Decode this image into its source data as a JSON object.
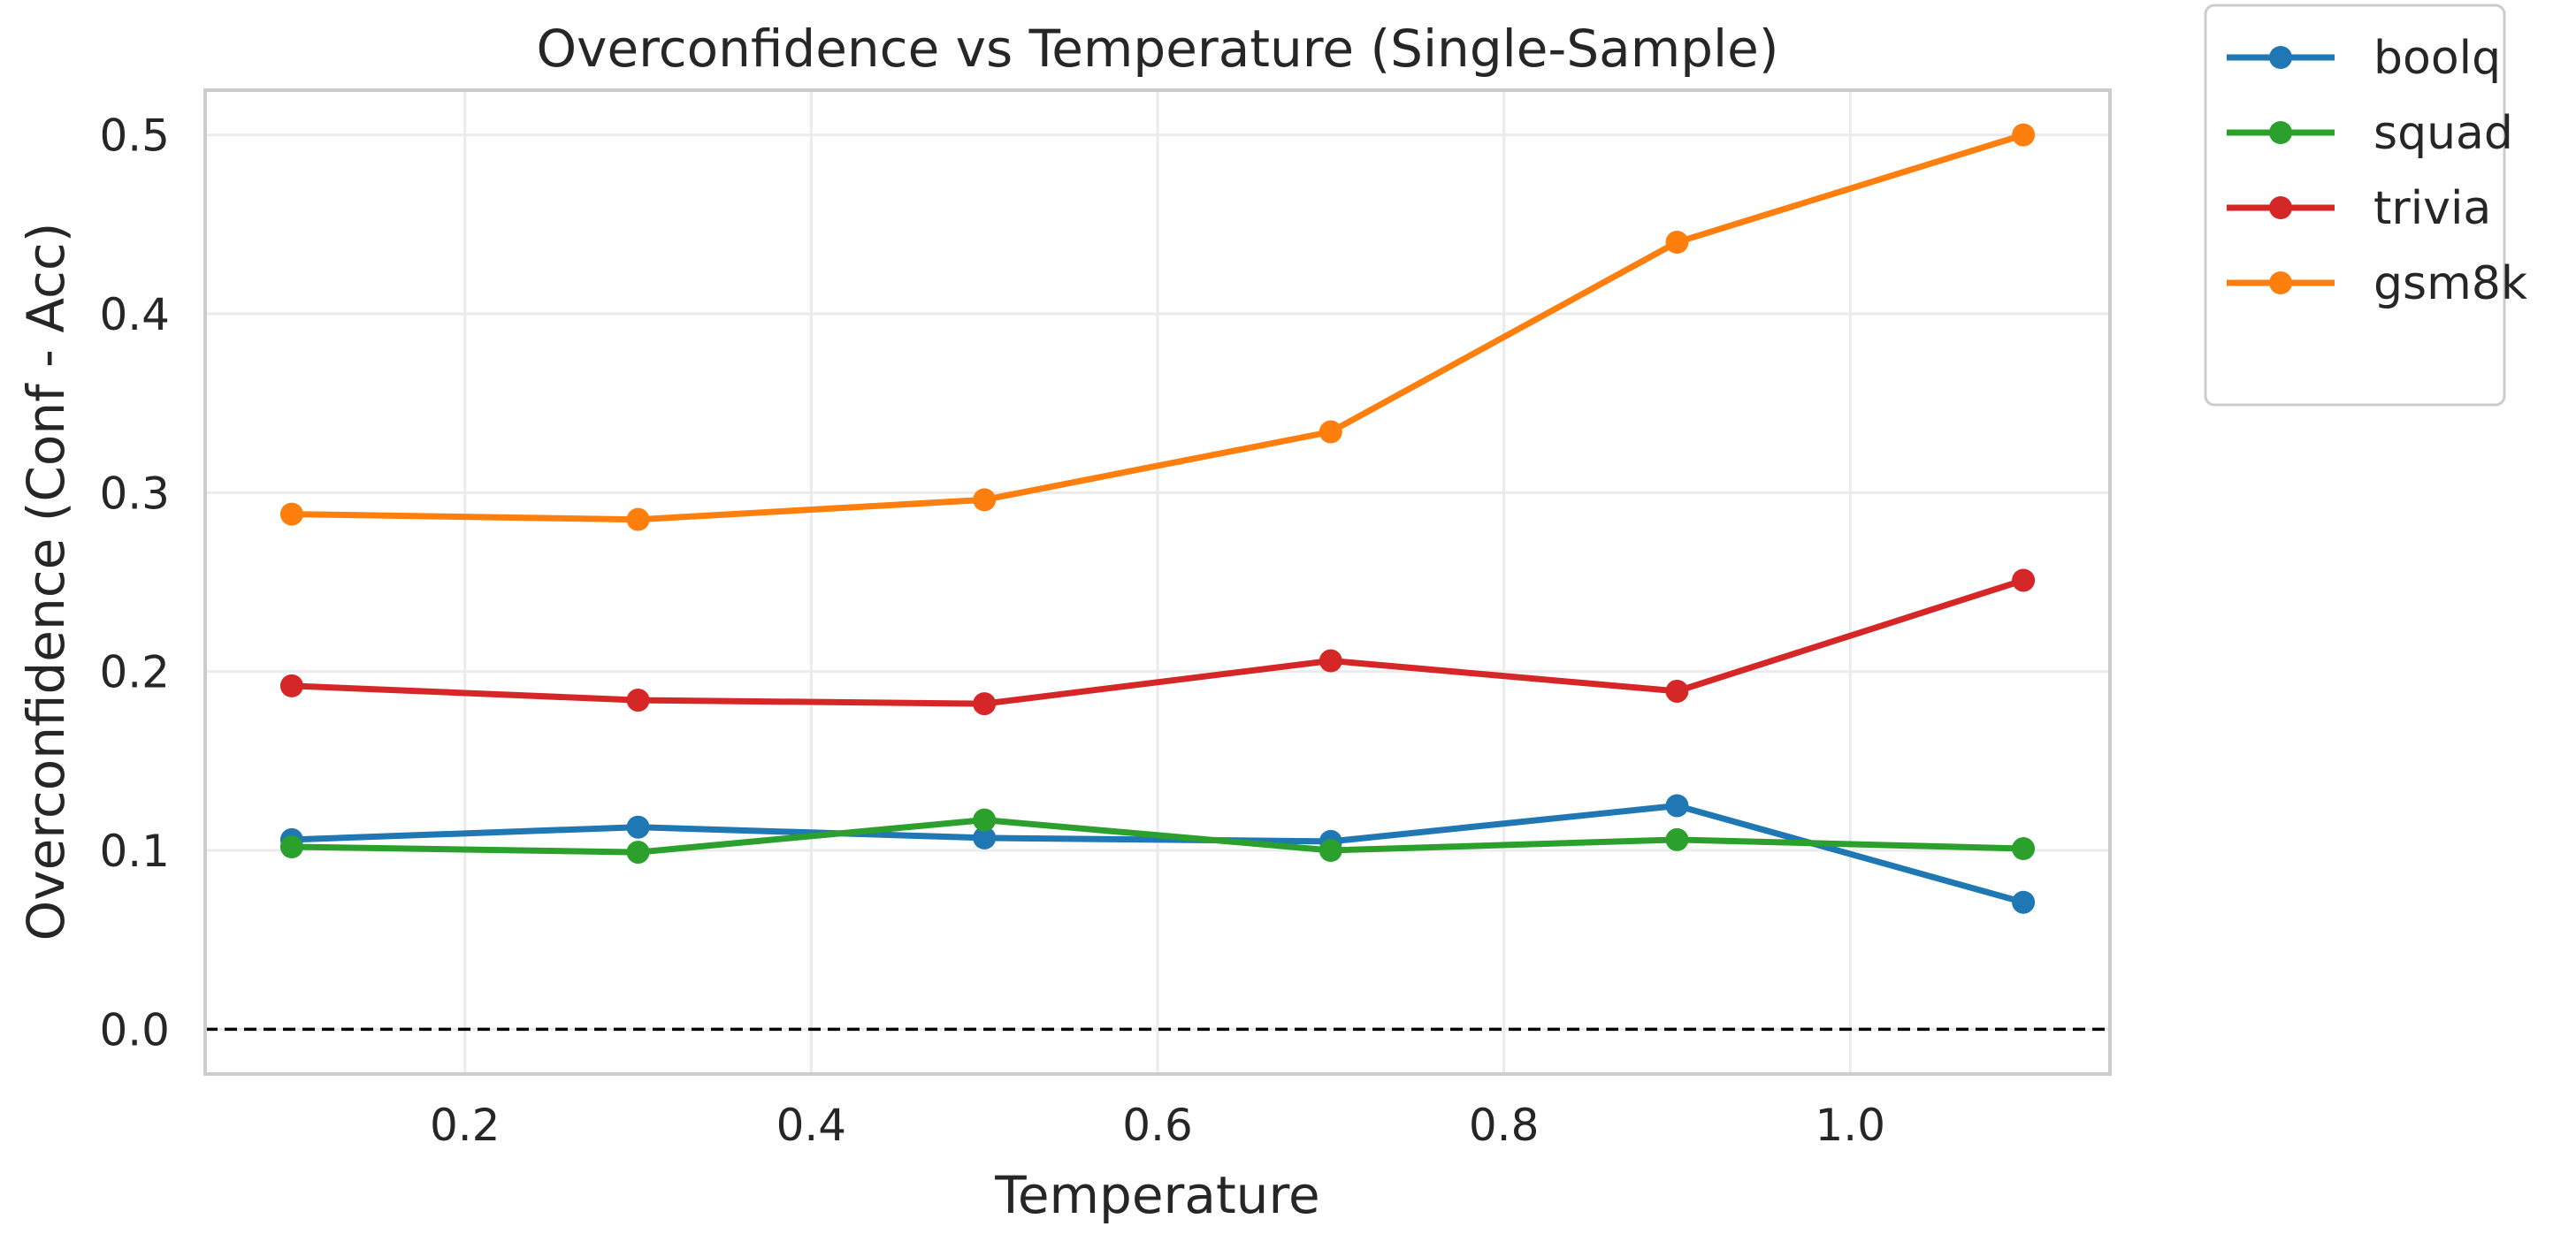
{
  "chart_data": {
    "type": "line",
    "title": "Overconfidence vs Temperature (Single-Sample)",
    "xlabel": "Temperature",
    "ylabel": "Overconfidence (Conf - Acc)",
    "x": [
      0.1,
      0.3,
      0.5,
      0.7,
      0.9,
      1.1
    ],
    "xlim": [
      0.05,
      1.15
    ],
    "ylim": [
      -0.025,
      0.525
    ],
    "xticks": [
      0.2,
      0.4,
      0.6,
      0.8,
      1.0
    ],
    "xtick_labels": [
      "0.2",
      "0.4",
      "0.6",
      "0.8",
      "1.0"
    ],
    "yticks": [
      0.0,
      0.1,
      0.2,
      0.3,
      0.4,
      0.5
    ],
    "ytick_labels": [
      "0.0",
      "0.1",
      "0.2",
      "0.3",
      "0.4",
      "0.5"
    ],
    "grid": true,
    "reference_line": {
      "y": 0.0,
      "style": "dashed",
      "color": "#000000"
    },
    "legend_position": "outside-top-right",
    "series": [
      {
        "name": "boolq",
        "color": "#1f77b4",
        "values": [
          0.106,
          0.113,
          0.107,
          0.105,
          0.125,
          0.071
        ]
      },
      {
        "name": "squad",
        "color": "#2ca02c",
        "values": [
          0.102,
          0.099,
          0.117,
          0.1,
          0.106,
          0.101
        ]
      },
      {
        "name": "trivia",
        "color": "#d62728",
        "values": [
          0.192,
          0.184,
          0.182,
          0.206,
          0.189,
          0.251
        ]
      },
      {
        "name": "gsm8k",
        "color": "#ff7f0e",
        "values": [
          0.288,
          0.285,
          0.296,
          0.334,
          0.44,
          0.5
        ]
      }
    ]
  }
}
